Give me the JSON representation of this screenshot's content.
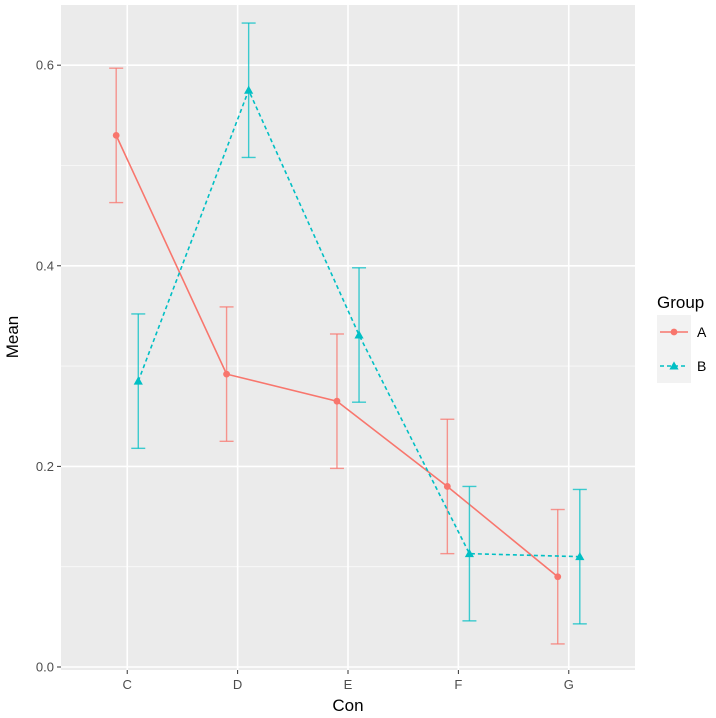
{
  "chart_data": {
    "type": "line",
    "xlabel": "Con",
    "ylabel": "Mean",
    "categories": [
      "C",
      "D",
      "E",
      "F",
      "G"
    ],
    "ylim": [
      -0.003,
      0.66
    ],
    "yticks": [
      0.0,
      0.2,
      0.4,
      0.6
    ],
    "ytick_labels": [
      "0.0",
      "0.2",
      "0.4",
      "0.6"
    ],
    "dodge": 0.2,
    "grid": true,
    "legend": {
      "title": "Group",
      "placement": "right"
    },
    "series": [
      {
        "name": "A",
        "color": "#F8766D",
        "line_style": "solid",
        "marker": "circle",
        "values": [
          0.53,
          0.292,
          0.265,
          0.18,
          0.09
        ],
        "err_low": [
          0.463,
          0.225,
          0.198,
          0.113,
          0.023
        ],
        "err_high": [
          0.597,
          0.359,
          0.332,
          0.247,
          0.157
        ]
      },
      {
        "name": "B",
        "color": "#00BFC4",
        "line_style": "dashed",
        "marker": "triangle",
        "values": [
          0.285,
          0.575,
          0.331,
          0.113,
          0.11
        ],
        "err_low": [
          0.218,
          0.508,
          0.264,
          0.046,
          0.043
        ],
        "err_high": [
          0.352,
          0.642,
          0.398,
          0.18,
          0.177
        ]
      }
    ]
  }
}
